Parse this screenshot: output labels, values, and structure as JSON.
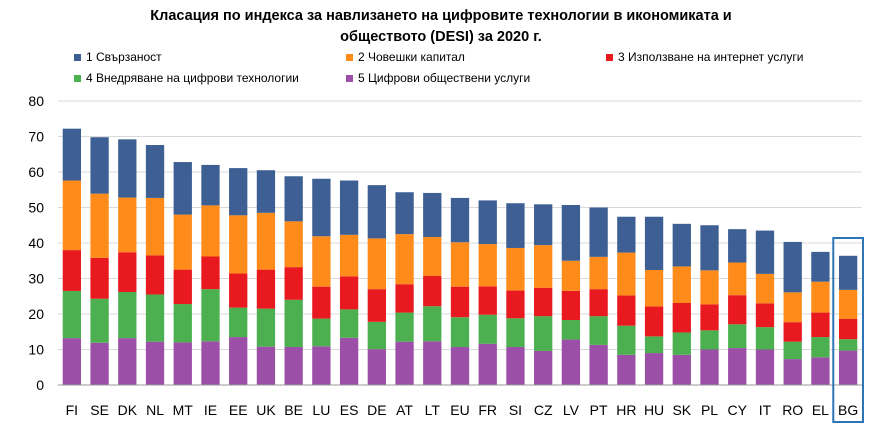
{
  "chart_data": {
    "type": "bar",
    "stacked": true,
    "title_lines": [
      "Класация по индекса за навлизането на цифровите технологии в икономиката и",
      "обществото (DESI) за 2020 г."
    ],
    "categories": [
      "FI",
      "SE",
      "DK",
      "NL",
      "MT",
      "IE",
      "EE",
      "UK",
      "BE",
      "LU",
      "ES",
      "DE",
      "AT",
      "LT",
      "EU",
      "FR",
      "SI",
      "CZ",
      "LV",
      "PT",
      "HR",
      "HU",
      "SK",
      "PL",
      "CY",
      "IT",
      "RO",
      "EL",
      "BG"
    ],
    "highlighted_category": "BG",
    "ylim": [
      0,
      80
    ],
    "yticks": [
      "0",
      "10",
      "20",
      "30",
      "40",
      "50",
      "60",
      "70",
      "80"
    ],
    "grid": true,
    "legend_position": "top",
    "series": [
      {
        "name": "5 Цифрови обществени услуги",
        "color": "#9b4fa6",
        "values": [
          13.2,
          11.9,
          13.2,
          12.2,
          12.0,
          12.3,
          13.5,
          10.8,
          10.7,
          10.9,
          13.3,
          10.1,
          12.2,
          12.3,
          10.7,
          11.6,
          10.7,
          9.6,
          12.8,
          11.3,
          8.5,
          9.0,
          8.5,
          10.0,
          10.4,
          10.0,
          7.3,
          7.8,
          9.7
        ]
      },
      {
        "name": "4 Внедряване на цифрови технологии",
        "color": "#4caf50",
        "values": [
          13.3,
          12.4,
          13.0,
          13.3,
          10.8,
          14.7,
          8.3,
          10.7,
          13.3,
          7.8,
          8.0,
          7.7,
          8.2,
          9.9,
          8.4,
          8.2,
          8.1,
          9.8,
          5.5,
          8.1,
          8.2,
          4.7,
          6.3,
          5.4,
          6.7,
          6.3,
          4.9,
          5.7,
          3.2
        ]
      },
      {
        "name": "3 Използване на интернет услуги",
        "color": "#e8191f",
        "values": [
          11.5,
          11.5,
          11.2,
          11.0,
          9.7,
          9.2,
          9.6,
          11.0,
          9.2,
          9.0,
          9.3,
          9.2,
          8.0,
          8.5,
          8.6,
          8.0,
          7.8,
          8.0,
          8.2,
          7.6,
          8.5,
          8.4,
          8.3,
          7.3,
          8.2,
          6.7,
          5.5,
          6.9,
          5.7
        ]
      },
      {
        "name": "2 Човешки капитал",
        "color": "#ff8c1a",
        "values": [
          19.6,
          18.1,
          15.4,
          16.2,
          15.5,
          14.4,
          16.4,
          16.0,
          12.9,
          14.2,
          11.7,
          14.3,
          14.1,
          11.0,
          12.5,
          11.9,
          12.0,
          12.0,
          8.5,
          9.1,
          12.1,
          10.3,
          10.3,
          9.6,
          9.2,
          8.3,
          8.4,
          8.7,
          8.2
        ]
      },
      {
        "name": "1 Свързаност",
        "color": "#3d5f94",
        "values": [
          14.6,
          15.9,
          16.4,
          14.9,
          14.8,
          11.4,
          13.3,
          12.0,
          12.7,
          16.2,
          15.3,
          15.0,
          11.8,
          12.4,
          12.5,
          12.3,
          12.6,
          11.5,
          15.7,
          13.9,
          10.1,
          15.0,
          12.0,
          12.7,
          9.4,
          12.2,
          14.2,
          8.4,
          9.6
        ]
      }
    ],
    "legend_order": [
      "1 Свързаност",
      "2 Човешки капитал",
      "3 Използване на интернет услуги",
      "4 Внедряване на цифрови технологии",
      "5 Цифрови обществени услуги"
    ]
  }
}
